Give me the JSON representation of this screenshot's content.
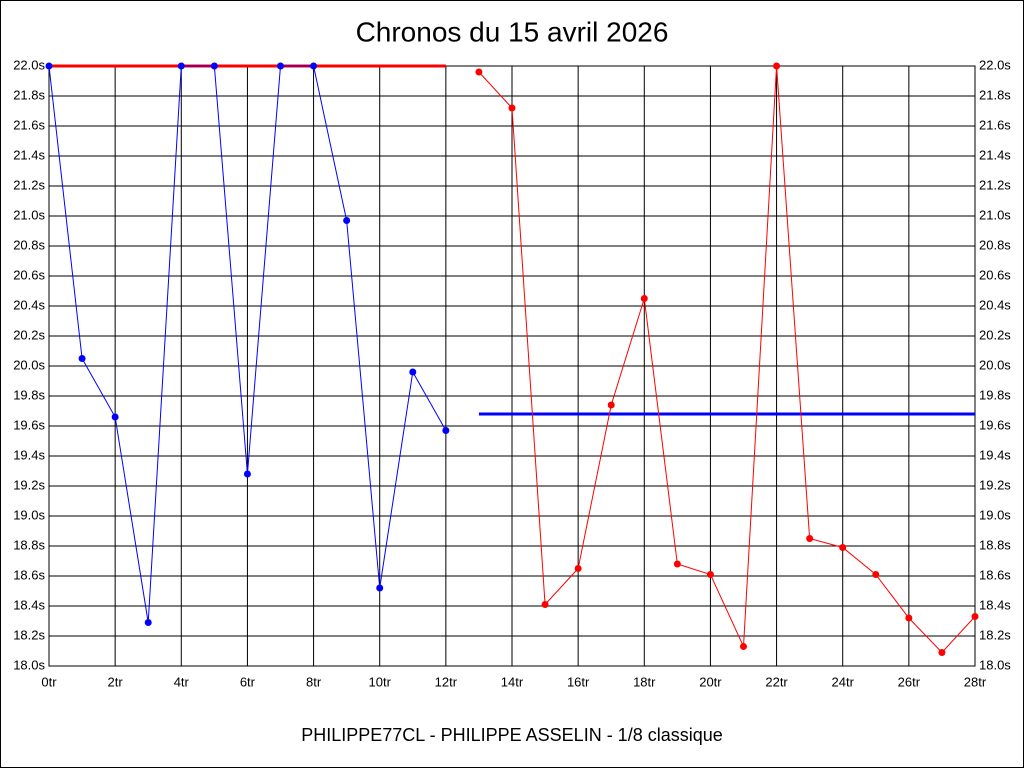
{
  "chart_data": {
    "type": "line",
    "title": "Chronos du 15 avril 2026",
    "subtitle": "PHILIPPE77CL - PHILIPPE ASSELIN - 1/8 classique",
    "x": [
      0,
      1,
      2,
      3,
      4,
      5,
      6,
      7,
      8,
      9,
      10,
      11,
      12,
      13,
      14,
      15,
      16,
      17,
      18,
      19,
      20,
      21,
      22,
      23,
      24,
      25,
      26,
      27,
      28
    ],
    "xlim": [
      0,
      28
    ],
    "xticks": [
      {
        "value": 0,
        "label": "0tr"
      },
      {
        "value": 2,
        "label": "2tr"
      },
      {
        "value": 4,
        "label": "4tr"
      },
      {
        "value": 6,
        "label": "6tr"
      },
      {
        "value": 8,
        "label": "8tr"
      },
      {
        "value": 10,
        "label": "10tr"
      },
      {
        "value": 12,
        "label": "12tr"
      },
      {
        "value": 14,
        "label": "14tr"
      },
      {
        "value": 16,
        "label": "16tr"
      },
      {
        "value": 18,
        "label": "18tr"
      },
      {
        "value": 20,
        "label": "20tr"
      },
      {
        "value": 22,
        "label": "22tr"
      },
      {
        "value": 24,
        "label": "24tr"
      },
      {
        "value": 26,
        "label": "26tr"
      },
      {
        "value": 28,
        "label": "28tr"
      }
    ],
    "ylim": [
      18.0,
      22.0
    ],
    "yticks": [
      {
        "value": 18.0,
        "label": "18.0s"
      },
      {
        "value": 18.2,
        "label": "18.2s"
      },
      {
        "value": 18.4,
        "label": "18.4s"
      },
      {
        "value": 18.6,
        "label": "18.6s"
      },
      {
        "value": 18.8,
        "label": "18.8s"
      },
      {
        "value": 19.0,
        "label": "19.0s"
      },
      {
        "value": 19.2,
        "label": "19.2s"
      },
      {
        "value": 19.4,
        "label": "19.4s"
      },
      {
        "value": 19.6,
        "label": "19.6s"
      },
      {
        "value": 19.8,
        "label": "19.8s"
      },
      {
        "value": 20.0,
        "label": "20.0s"
      },
      {
        "value": 20.2,
        "label": "20.2s"
      },
      {
        "value": 20.4,
        "label": "20.4s"
      },
      {
        "value": 20.6,
        "label": "20.6s"
      },
      {
        "value": 20.8,
        "label": "20.8s"
      },
      {
        "value": 21.0,
        "label": "21.0s"
      },
      {
        "value": 21.2,
        "label": "21.2s"
      },
      {
        "value": 21.4,
        "label": "21.4s"
      },
      {
        "value": 21.6,
        "label": "21.6s"
      },
      {
        "value": 21.8,
        "label": "21.8s"
      },
      {
        "value": 22.0,
        "label": "22.0s"
      }
    ],
    "grid": true,
    "series": [
      {
        "color": "#ff0000",
        "width": 3,
        "markers": false,
        "values": [
          22.0,
          22.0,
          22.0,
          22.0,
          22.0,
          22.0,
          22.0,
          22.0,
          22.0,
          22.0,
          22.0,
          22.0,
          22.0,
          null,
          null,
          null,
          null,
          null,
          null,
          null,
          null,
          null,
          null,
          null,
          null,
          null,
          null,
          null,
          null
        ]
      },
      {
        "color": "#0000ff",
        "width": 3,
        "markers": false,
        "values": [
          null,
          null,
          null,
          null,
          null,
          null,
          null,
          null,
          null,
          null,
          null,
          null,
          null,
          19.68,
          19.68,
          19.68,
          19.68,
          19.68,
          19.68,
          19.68,
          19.68,
          19.68,
          19.68,
          19.68,
          19.68,
          19.68,
          19.68,
          19.68,
          19.68
        ]
      },
      {
        "color": "#0000ff",
        "width": 1,
        "markers": true,
        "values": [
          22.0,
          20.05,
          19.66,
          18.29,
          22.0,
          22.0,
          19.28,
          22.0,
          22.0,
          20.97,
          18.52,
          19.96,
          19.57,
          null,
          null,
          null,
          null,
          null,
          null,
          null,
          null,
          null,
          null,
          null,
          null,
          null,
          null,
          null,
          null
        ]
      },
      {
        "color": "#ff0000",
        "width": 1,
        "markers": true,
        "values": [
          null,
          null,
          null,
          null,
          null,
          null,
          null,
          null,
          null,
          null,
          null,
          null,
          null,
          21.96,
          21.72,
          18.41,
          18.65,
          19.74,
          20.45,
          18.68,
          18.61,
          18.13,
          22.0,
          18.85,
          18.79,
          18.61,
          18.32,
          18.09,
          18.33
        ]
      }
    ]
  }
}
